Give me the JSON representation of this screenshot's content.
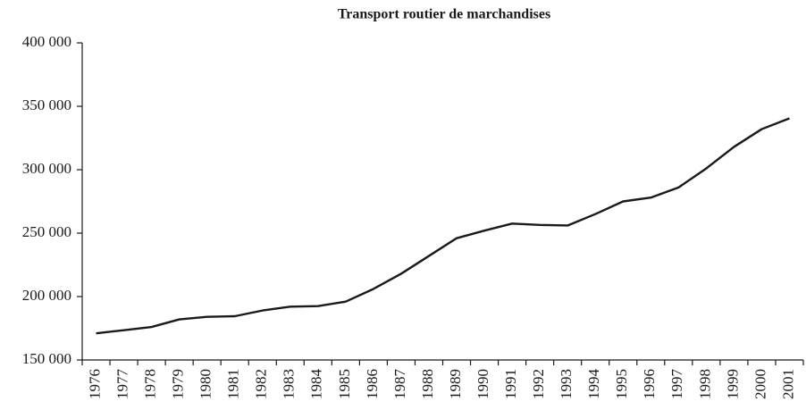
{
  "chart_data": {
    "type": "line",
    "title": "Transport routier de marchandises",
    "categories": [
      "1976",
      "1977",
      "1978",
      "1979",
      "1980",
      "1981",
      "1982",
      "1983",
      "1984",
      "1985",
      "1986",
      "1987",
      "1988",
      "1989",
      "1990",
      "1991",
      "1992",
      "1993",
      "1994",
      "1995",
      "1996",
      "1997",
      "1998",
      "1999",
      "2000",
      "2001"
    ],
    "series": [
      {
        "color": "#1a1a1a",
        "values": [
          171000,
          173500,
          176000,
          182000,
          184000,
          184500,
          189000,
          192000,
          192500,
          196000,
          206000,
          218000,
          232000,
          246000,
          252000,
          257500,
          256500,
          256000,
          265000,
          275000,
          278000,
          286000,
          301000,
          318000,
          332000,
          340500
        ]
      }
    ],
    "ylim": [
      150000,
      400000
    ],
    "yticks": [
      {
        "value": 150000,
        "label": "150 000"
      },
      {
        "value": 200000,
        "label": "200 000"
      },
      {
        "value": 250000,
        "label": "250 000"
      },
      {
        "value": 300000,
        "label": "300 000"
      },
      {
        "value": 350000,
        "label": "350 000"
      },
      {
        "value": 400000,
        "label": "400 000"
      }
    ],
    "grid": false
  }
}
